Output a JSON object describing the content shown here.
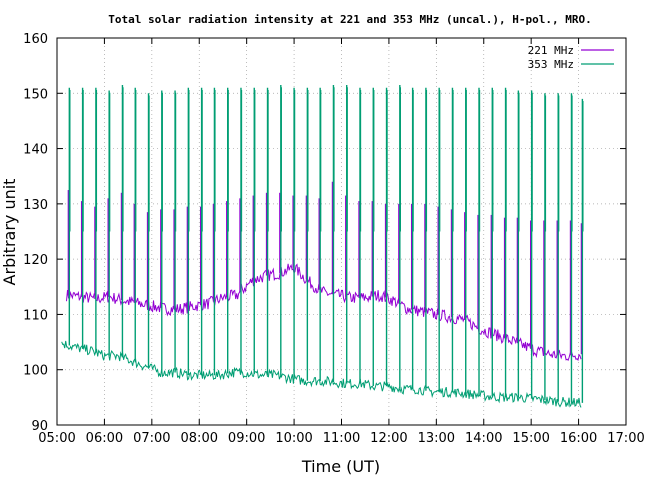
{
  "chart_data": {
    "type": "line",
    "title": "Total solar radiation intensity at 221 and 353 MHz (uncal.), H-pol., MRO.",
    "xlabel": "Time (UT)",
    "ylabel": "Arbitrary unit",
    "x_unit": "hours UT",
    "xlim": [
      5.0,
      17.0
    ],
    "ylim": [
      90,
      160
    ],
    "x_ticks": [
      5,
      6,
      7,
      8,
      9,
      10,
      11,
      12,
      13,
      14,
      15,
      16,
      17
    ],
    "x_tick_labels": [
      "05:00",
      "06:00",
      "07:00",
      "08:00",
      "09:00",
      "10:00",
      "11:00",
      "12:00",
      "13:00",
      "14:00",
      "15:00",
      "16:00",
      "17:00"
    ],
    "y_ticks": [
      90,
      100,
      110,
      120,
      130,
      140,
      150,
      160
    ],
    "y_tick_labels": [
      "90",
      "100",
      "110",
      "120",
      "130",
      "140",
      "150",
      "160"
    ],
    "grid": true,
    "legend_position": "top-right",
    "series": [
      {
        "name": "221 MHz",
        "color": "#9400d3",
        "x": [
          5.2,
          5.5,
          5.8,
          6.1,
          6.4,
          6.7,
          7.0,
          7.3,
          7.6,
          7.9,
          8.2,
          8.5,
          8.8,
          9.1,
          9.4,
          9.7,
          10.0,
          10.3,
          10.6,
          10.9,
          11.2,
          11.5,
          11.8,
          12.1,
          12.4,
          12.7,
          13.0,
          13.3,
          13.6,
          13.9,
          14.2,
          14.5,
          14.8,
          15.1,
          15.4,
          15.7,
          16.05
        ],
        "y": [
          113.5,
          113.2,
          112.8,
          113.2,
          112.5,
          112.0,
          111.5,
          111.0,
          111.0,
          111.5,
          112.0,
          113.0,
          113.5,
          116.0,
          117.0,
          117.5,
          118.5,
          116.0,
          114.0,
          113.5,
          113.0,
          113.0,
          113.5,
          112.5,
          111.0,
          110.5,
          110.0,
          109.5,
          109.0,
          107.5,
          106.5,
          105.5,
          104.5,
          103.5,
          102.8,
          102.5,
          102.8
        ],
        "bursts_x": [
          5.24,
          5.52,
          5.8,
          6.08,
          6.36,
          6.63,
          6.91,
          7.19,
          7.47,
          7.75,
          8.03,
          8.3,
          8.58,
          8.86,
          9.14,
          9.42,
          9.7,
          9.98,
          10.26,
          10.53,
          10.81,
          11.09,
          11.37,
          11.65,
          11.93,
          12.21,
          12.48,
          12.76,
          13.04,
          13.32,
          13.6,
          13.88,
          14.16,
          14.44,
          14.71,
          14.99,
          15.27,
          15.55,
          15.83,
          16.06
        ],
        "bursts_y": [
          132.5,
          130.5,
          129.5,
          131.0,
          132.0,
          130.0,
          128.5,
          129.0,
          129.0,
          129.5,
          129.5,
          130.0,
          130.5,
          131.0,
          131.5,
          132.0,
          132.0,
          131.5,
          131.5,
          131.0,
          134.0,
          131.5,
          130.5,
          130.5,
          130.0,
          130.0,
          130.0,
          130.0,
          129.5,
          129.0,
          128.5,
          128.0,
          128.0,
          127.5,
          127.5,
          127.0,
          127.0,
          127.0,
          127.0,
          126.5
        ]
      },
      {
        "name": "353 MHz",
        "color": "#009e73",
        "x": [
          5.1,
          5.4,
          5.7,
          6.0,
          6.3,
          6.6,
          6.9,
          7.2,
          7.5,
          7.8,
          8.1,
          8.4,
          8.7,
          9.0,
          9.3,
          9.6,
          9.9,
          10.2,
          10.5,
          10.8,
          11.1,
          11.4,
          11.7,
          12.0,
          12.3,
          12.6,
          12.9,
          13.2,
          13.5,
          13.8,
          14.1,
          14.4,
          14.7,
          15.0,
          15.3,
          15.6,
          16.05
        ],
        "y": [
          104.8,
          104.0,
          103.5,
          102.5,
          102.5,
          101.5,
          100.5,
          99.5,
          99.5,
          99.0,
          99.0,
          99.0,
          99.5,
          99.5,
          99.0,
          99.0,
          98.5,
          98.0,
          98.0,
          97.8,
          97.5,
          97.5,
          97.0,
          97.0,
          96.5,
          96.5,
          96.0,
          96.0,
          95.8,
          95.5,
          95.2,
          95.0,
          95.0,
          94.8,
          94.5,
          94.2,
          94.0
        ],
        "bursts_x": [
          5.26,
          5.54,
          5.82,
          6.1,
          6.38,
          6.65,
          6.93,
          7.21,
          7.49,
          7.77,
          8.05,
          8.32,
          8.6,
          8.88,
          9.16,
          9.44,
          9.72,
          10.0,
          10.28,
          10.55,
          10.83,
          11.11,
          11.39,
          11.67,
          11.95,
          12.23,
          12.5,
          12.78,
          13.06,
          13.34,
          13.62,
          13.9,
          14.18,
          14.46,
          14.73,
          15.01,
          15.29,
          15.57,
          15.85,
          16.08
        ],
        "bursts_y": [
          151.0,
          151.0,
          151.0,
          150.5,
          151.5,
          151.0,
          150.0,
          150.5,
          150.5,
          151.0,
          151.0,
          151.0,
          151.0,
          151.0,
          151.0,
          151.0,
          151.5,
          151.0,
          151.0,
          151.0,
          151.5,
          151.5,
          151.0,
          151.0,
          151.0,
          151.5,
          151.0,
          151.0,
          151.0,
          151.0,
          151.0,
          151.0,
          151.0,
          151.0,
          150.5,
          150.5,
          150.0,
          150.0,
          150.0,
          149.0
        ],
        "burst_floor": 125.0
      }
    ]
  }
}
